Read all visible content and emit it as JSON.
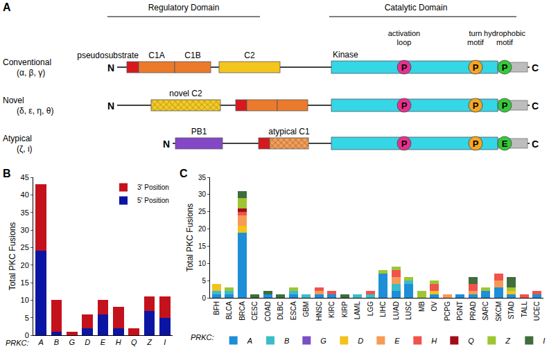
{
  "diagram": {
    "panel_label": "A",
    "headers": [
      "Regulatory Domain",
      "Catalytic Domain"
    ],
    "site_labels": [
      [
        "activation",
        "loop"
      ],
      [
        "turn",
        "motif"
      ],
      [
        "hydrophobic",
        "motif"
      ]
    ],
    "n_label": "N",
    "c_label": "C",
    "rows": [
      {
        "name": "Conventional",
        "members": "(α, β, γ)",
        "domain_labels": [
          "pseudosubstrate",
          "C1A",
          "C1B",
          "C2",
          "Kinase"
        ],
        "sites": [
          "P",
          "P",
          "P"
        ]
      },
      {
        "name": "Novel",
        "members": "(δ, ε, η, θ)",
        "domain_labels": [
          "novel C2"
        ],
        "sites": [
          "P",
          "P",
          "P"
        ]
      },
      {
        "name": "Atypical",
        "members": "(ζ, ι)",
        "domain_labels": [
          "PB1",
          "atypical C1"
        ],
        "sites": [
          "P",
          "P",
          "E"
        ]
      }
    ]
  },
  "chart_data": [
    {
      "panel_label": "B",
      "type": "bar",
      "stacked": true,
      "legend": "top-right",
      "grid": false,
      "categories": [
        "A",
        "B",
        "G",
        "D",
        "E",
        "H",
        "Q",
        "Z",
        "I"
      ],
      "x_label": "PRKC:",
      "y_label": "Total PKC Fusions",
      "ylim": [
        0,
        45
      ],
      "yticks": [
        0,
        5,
        10,
        15,
        20,
        25,
        30,
        35,
        40,
        45
      ],
      "series": [
        {
          "name": "5' Position",
          "color": "#0b15a3",
          "values": [
            24,
            1,
            0,
            2,
            6,
            2,
            0,
            7,
            5
          ]
        },
        {
          "name": "3' Position",
          "color": "#c3121c",
          "values": [
            19,
            9,
            1,
            4,
            4,
            6,
            2,
            4,
            6
          ]
        }
      ]
    },
    {
      "panel_label": "C",
      "type": "bar",
      "stacked": true,
      "legend": "bottom",
      "grid": false,
      "categories": [
        "BFH",
        "BLCA",
        "BRCA",
        "CESC",
        "COAD",
        "DLBC",
        "ESCA",
        "GBM",
        "HNSC",
        "KIRC",
        "KIRP",
        "LAML",
        "LGG",
        "LIHC",
        "LUAD",
        "LUSC",
        "MB",
        "OV",
        "PCPG",
        "PGNT",
        "PRAD",
        "SARC",
        "SKCM",
        "STAD",
        "TALL",
        "UCEC"
      ],
      "legend_title": "PRKC:",
      "y_label": "Total PKC Fusions",
      "ylim": [
        0,
        35
      ],
      "yticks": [
        0,
        5,
        10,
        15,
        20,
        25,
        30,
        35
      ],
      "series": [
        {
          "name": "A",
          "color": "#1e8ed8",
          "values": [
            1,
            1,
            19,
            0,
            1,
            0,
            1,
            0,
            1,
            1,
            0,
            0,
            0,
            7,
            2,
            4,
            0,
            1,
            0,
            1,
            1,
            2,
            3,
            1,
            0,
            1
          ]
        },
        {
          "name": "B",
          "color": "#3cbcc9",
          "values": [
            1,
            1,
            0,
            0,
            0,
            0,
            1,
            1,
            0,
            0,
            0,
            1,
            1,
            0,
            2,
            1,
            0,
            0,
            0,
            0,
            0,
            0,
            0,
            0,
            0,
            0
          ]
        },
        {
          "name": "G",
          "color": "#7a4fc6",
          "values": [
            0,
            0,
            0,
            0,
            0,
            0,
            0,
            0,
            0,
            0,
            0,
            0,
            0,
            0,
            0,
            0,
            0,
            0,
            0,
            0,
            0,
            0,
            0,
            0,
            0,
            0
          ]
        },
        {
          "name": "D",
          "color": "#f3c21b",
          "values": [
            2,
            0,
            2,
            0,
            0,
            0,
            0,
            0,
            0,
            0,
            0,
            0,
            0,
            0,
            0,
            0,
            0,
            1,
            0,
            0,
            0,
            0,
            0,
            1,
            0,
            0
          ]
        },
        {
          "name": "E",
          "color": "#f59b55",
          "values": [
            0,
            0,
            3,
            0,
            0,
            0,
            0,
            0,
            1,
            0,
            0,
            0,
            0,
            0,
            2,
            0,
            0,
            0,
            1,
            0,
            1,
            0,
            2,
            0,
            0,
            0
          ]
        },
        {
          "name": "H",
          "color": "#f0524c",
          "values": [
            0,
            0,
            1,
            0,
            0,
            0,
            0,
            0,
            1,
            1,
            0,
            0,
            1,
            0,
            2,
            0,
            0,
            2,
            0,
            0,
            2,
            0,
            2,
            0,
            1,
            1
          ]
        },
        {
          "name": "Q",
          "color": "#a10d1b",
          "values": [
            0,
            0,
            1,
            0,
            0,
            0,
            0,
            0,
            0,
            0,
            0,
            0,
            0,
            0,
            0,
            0,
            0,
            0,
            0,
            0,
            0,
            0,
            0,
            0,
            0,
            0
          ]
        },
        {
          "name": "Z",
          "color": "#9dc632",
          "values": [
            0,
            1,
            3,
            0,
            0,
            0,
            1,
            0,
            0,
            0,
            0,
            0,
            0,
            1,
            1,
            1,
            2,
            1,
            0,
            0,
            0,
            1,
            0,
            1,
            0,
            0
          ]
        },
        {
          "name": "I",
          "color": "#3f6d3b",
          "values": [
            0,
            0,
            2,
            1,
            1,
            1,
            0,
            0,
            0,
            0,
            1,
            0,
            0,
            0,
            0,
            0,
            0,
            0,
            0,
            0,
            2,
            0,
            0,
            3,
            0,
            0
          ]
        }
      ]
    }
  ]
}
